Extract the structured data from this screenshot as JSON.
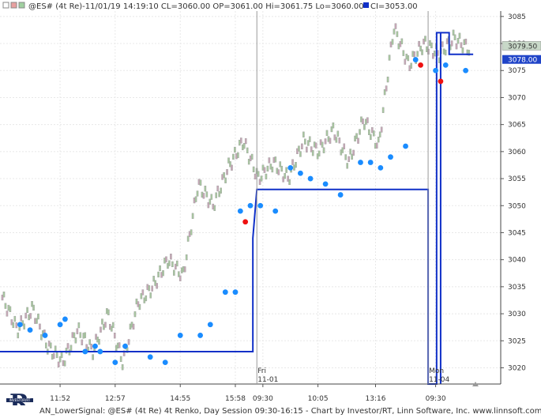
{
  "header": {
    "series_label": "@ES# (4t Re)-11/01/19 14:19:10 CL=3060.00 OP=3061.00 Hi=3061.75 Lo=3060.00",
    "ci_label": "CI=3053.00"
  },
  "footer": {
    "text": "AN_LowerSignal: @ES# (4t Re) 4t Renko, Day Session 09:30-16:15 - Chart by Investor/RT, Linn Software, Inc.  www.linnsoft.com"
  },
  "logo": {
    "letter": "R",
    "banner": "INVESTOR/RT"
  },
  "colors": {
    "up_brick": "#a8c8a0",
    "down_brick": "#c8a8b8",
    "brick_outline": "#9a9a9a",
    "ci_line": "#1030c8",
    "blue_dot": "#1a8cff",
    "red_dot": "#ee1111",
    "price_label_bg": "#2044c8",
    "price_label_gray": "#c8d8c8",
    "grid": "#e8e8e8"
  },
  "chart_data": {
    "type": "renko",
    "y_axis": {
      "min": 3017,
      "max": 3086,
      "ticks": [
        3085,
        3080,
        3075,
        3070,
        3065,
        3060,
        3055,
        3050,
        3045,
        3040,
        3035,
        3030,
        3025,
        3020
      ]
    },
    "x_ticks": [
      "11:52",
      "12:57",
      "14:55",
      "15:58",
      "09:30",
      "10:05",
      "13:16",
      "09:30"
    ],
    "session_markers": [
      {
        "day": "Fri",
        "date": "11-01"
      },
      {
        "day": "Mon",
        "date": "11-04"
      }
    ],
    "current_price": "3079.50",
    "ci_value": "3078.00",
    "brick_anchor_prices": [
      3033,
      3027,
      3031,
      3024,
      3021,
      3027,
      3023,
      3030,
      3021,
      3032,
      3035,
      3040,
      3037,
      3054,
      3050,
      3057,
      3062,
      3055,
      3058,
      3055,
      3062,
      3060,
      3064,
      3058,
      3066,
      3061,
      3083,
      3076,
      3080,
      3078,
      3081,
      3079
    ],
    "ci_steps": [
      {
        "from_index": 0,
        "value": 3023
      },
      {
        "from_index": 0.4,
        "value": 3053
      },
      {
        "from_index": 0.8,
        "value": 3082
      },
      {
        "from_index": 0.88,
        "value": 3078
      }
    ],
    "blue_signals": [
      [
        0.04,
        3028
      ],
      [
        0.06,
        3027
      ],
      [
        0.09,
        3026
      ],
      [
        0.12,
        3028
      ],
      [
        0.13,
        3029
      ],
      [
        0.17,
        3023
      ],
      [
        0.19,
        3024
      ],
      [
        0.2,
        3023
      ],
      [
        0.23,
        3021
      ],
      [
        0.25,
        3024
      ],
      [
        0.3,
        3022
      ],
      [
        0.33,
        3021
      ],
      [
        0.36,
        3026
      ],
      [
        0.4,
        3026
      ],
      [
        0.42,
        3028
      ],
      [
        0.45,
        3034
      ],
      [
        0.47,
        3034
      ],
      [
        0.48,
        3049
      ],
      [
        0.5,
        3050
      ],
      [
        0.52,
        3050
      ],
      [
        0.55,
        3049
      ],
      [
        0.58,
        3057
      ],
      [
        0.6,
        3056
      ],
      [
        0.62,
        3055
      ],
      [
        0.65,
        3054
      ],
      [
        0.68,
        3052
      ],
      [
        0.72,
        3058
      ],
      [
        0.74,
        3058
      ],
      [
        0.76,
        3057
      ],
      [
        0.78,
        3059
      ],
      [
        0.81,
        3061
      ],
      [
        0.83,
        3077
      ],
      [
        0.87,
        3075
      ],
      [
        0.89,
        3076
      ],
      [
        0.93,
        3075
      ]
    ],
    "red_signals": [
      [
        0.49,
        3047
      ],
      [
        0.84,
        3076
      ],
      [
        0.88,
        3073
      ]
    ],
    "grid": "horizontal and vertical"
  }
}
